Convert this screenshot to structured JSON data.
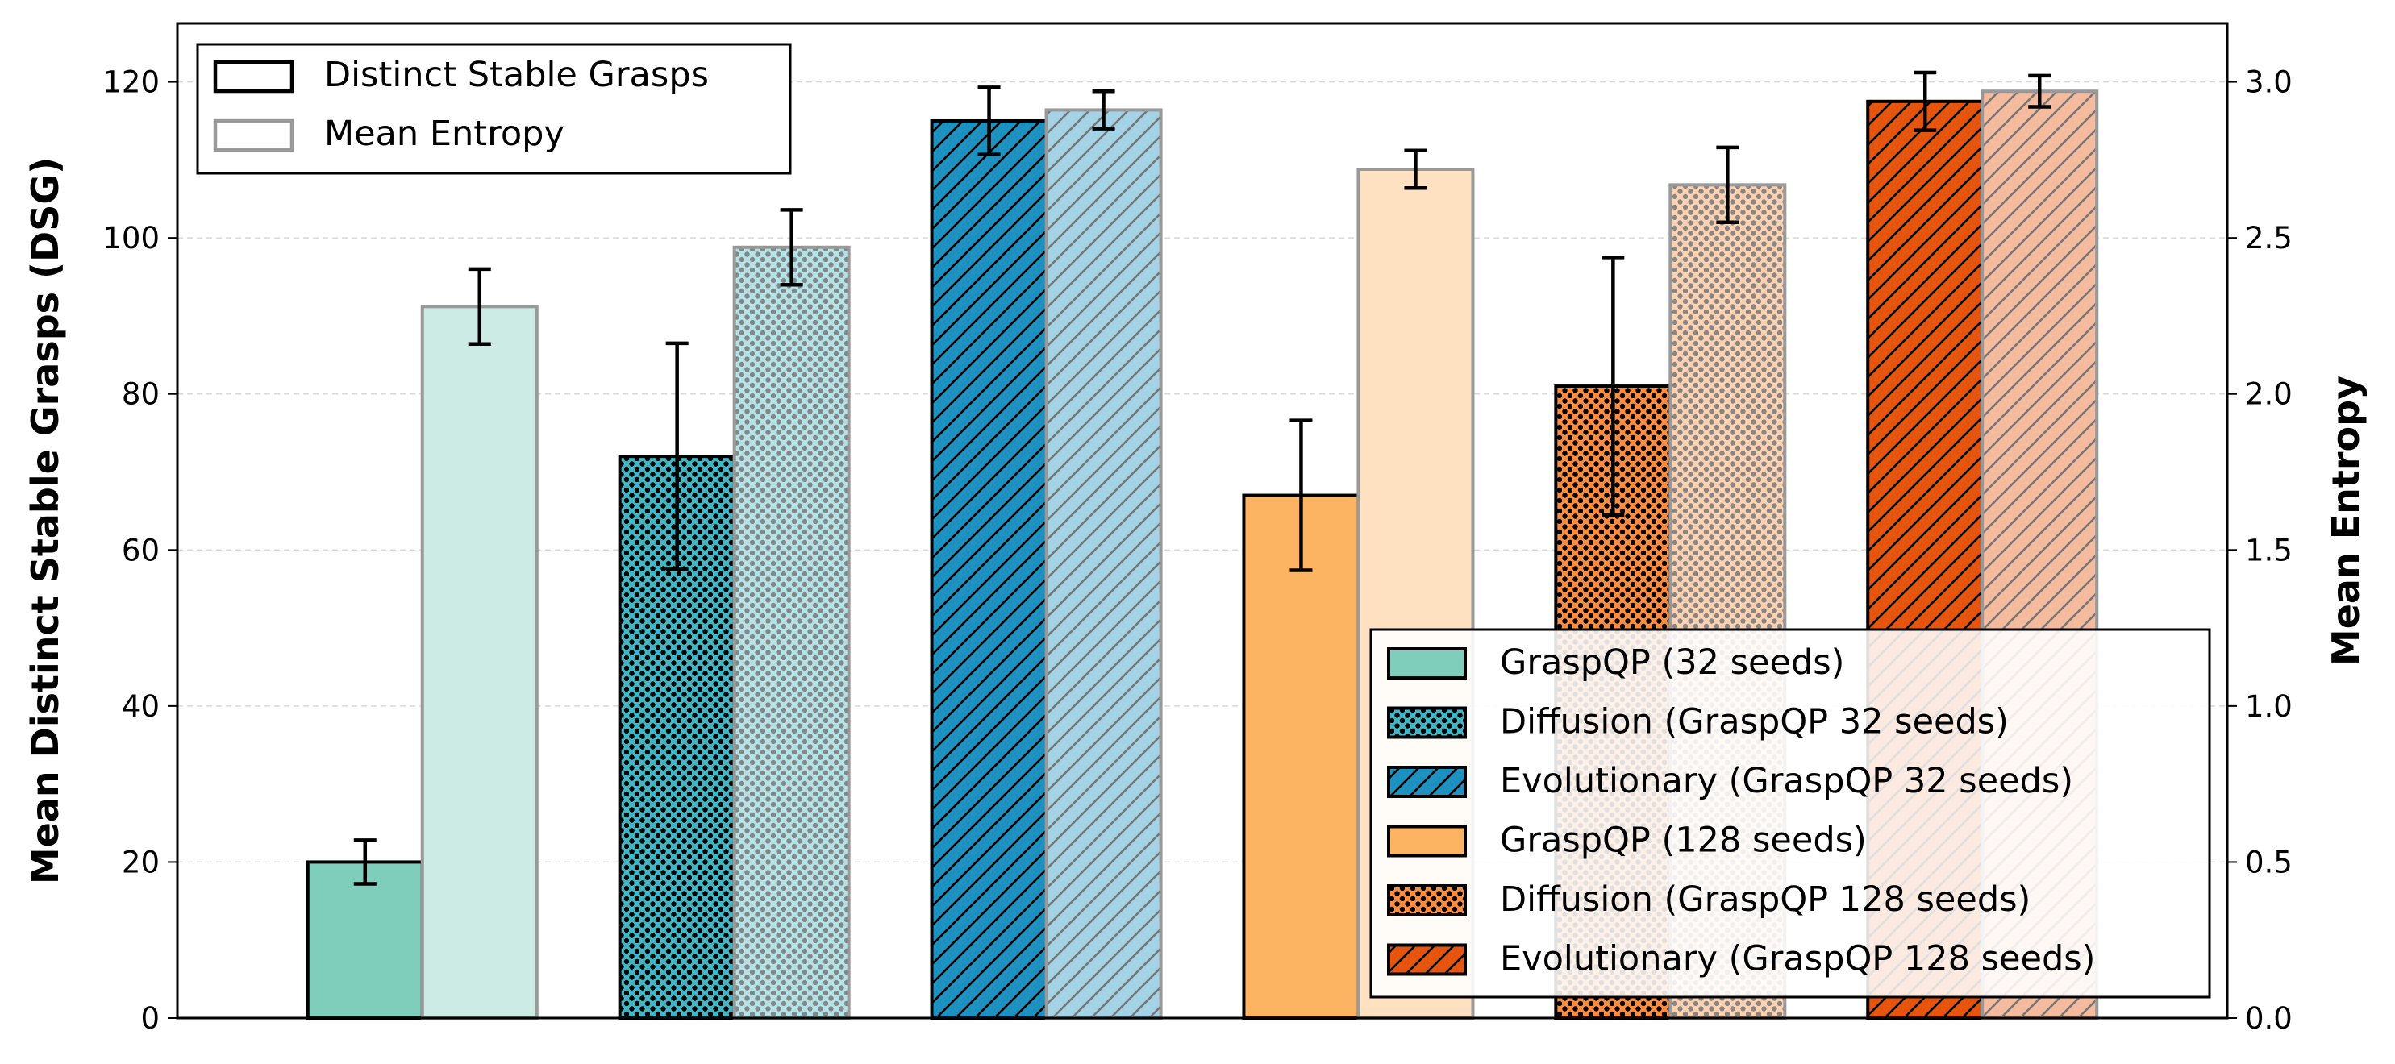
{
  "chart_data": {
    "type": "bar",
    "title": "",
    "xlabel": "",
    "ylabel": "Mean Distinct Stable Grasps (DSG)",
    "y2label": "Mean Entropy",
    "ylim": [
      0,
      127.5
    ],
    "y2lim": [
      0,
      3.1875
    ],
    "yticks": [
      "0",
      "20",
      "40",
      "60",
      "80",
      "100",
      "120"
    ],
    "y2ticks": [
      "0.0",
      "0.5",
      "1.0",
      "1.5",
      "2.0",
      "2.5",
      "3.0"
    ],
    "grid": "horizontal dashed",
    "groups": [
      {
        "name": "GraspQP (32 seeds)",
        "color": "#7fcdbb",
        "pattern": "none",
        "dsg": 20.0,
        "dsg_err": 2.8,
        "entropy": 2.28,
        "entropy_err": 0.12
      },
      {
        "name": "Diffusion (GraspQP 32 seeds)",
        "color": "#41b6c4",
        "pattern": "dots",
        "dsg": 72.0,
        "dsg_err": 14.5,
        "entropy": 2.47,
        "entropy_err": 0.12
      },
      {
        "name": "Evolutionary (GraspQP 32 seeds)",
        "color": "#1d91c0",
        "pattern": "hatch",
        "dsg": 115.0,
        "dsg_err": 4.3,
        "entropy": 2.91,
        "entropy_err": 0.06
      },
      {
        "name": "GraspQP (128 seeds)",
        "color": "#fdb462",
        "pattern": "none",
        "dsg": 67.0,
        "dsg_err": 9.6,
        "entropy": 2.72,
        "entropy_err": 0.06
      },
      {
        "name": "Diffusion (GraspQP 128 seeds)",
        "color": "#fd8d3c",
        "pattern": "dots",
        "dsg": 81.0,
        "dsg_err": 16.5,
        "entropy": 2.67,
        "entropy_err": 0.12
      },
      {
        "name": "Evolutionary (GraspQP 128 seeds)",
        "color": "#e6550d",
        "pattern": "hatch",
        "dsg": 117.5,
        "dsg_err": 3.7,
        "entropy": 2.97,
        "entropy_err": 0.05
      }
    ],
    "legend_metric": {
      "position": "top-left",
      "entries": [
        "Distinct Stable Grasps",
        "Mean Entropy"
      ]
    },
    "legend_methods_position": "bottom-right"
  }
}
